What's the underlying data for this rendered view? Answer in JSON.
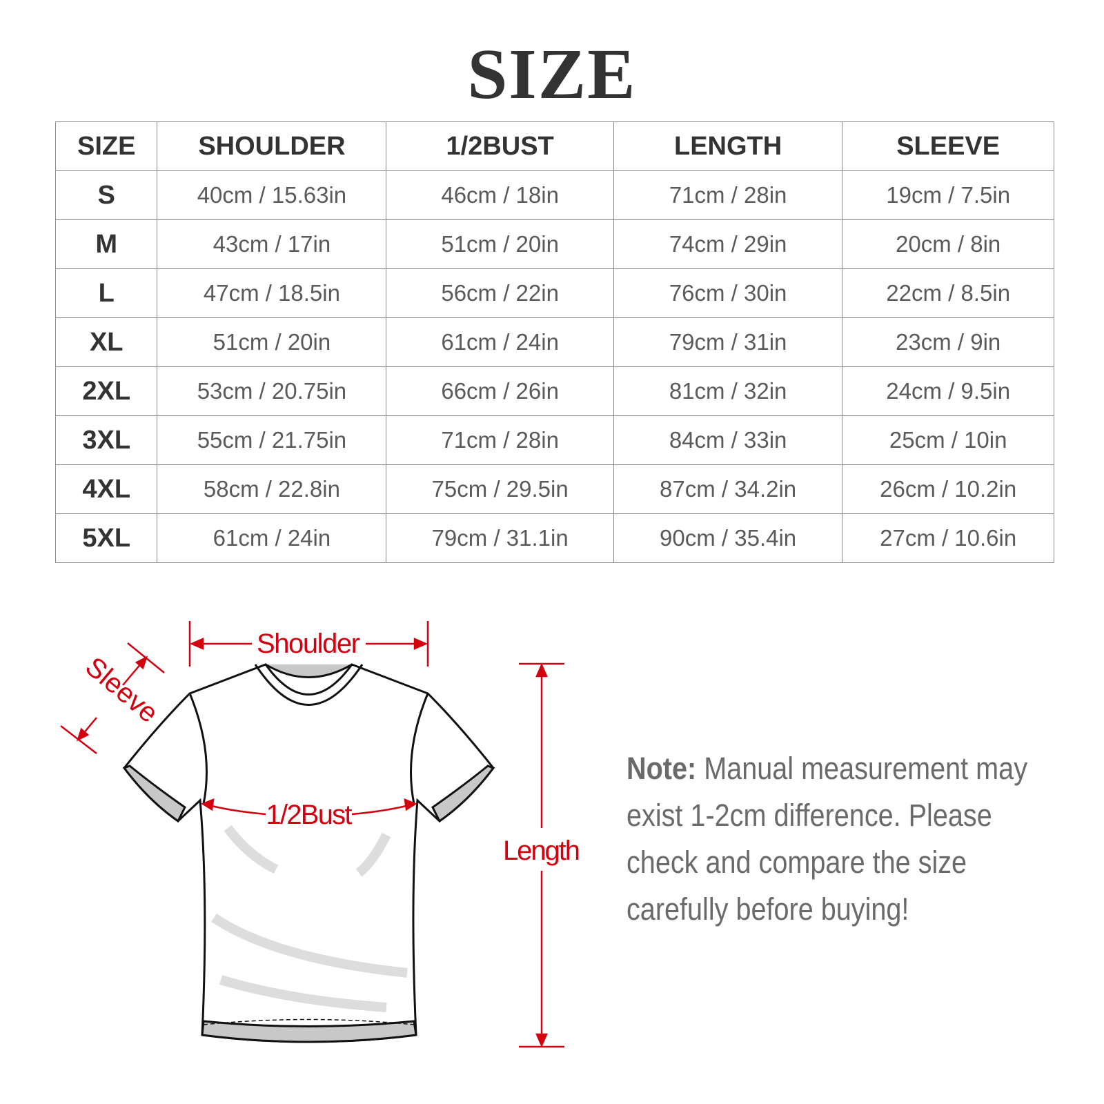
{
  "title": "SIZE",
  "table": {
    "headers": [
      "SIZE",
      "SHOULDER",
      "1/2BUST",
      "LENGTH",
      "SLEEVE"
    ],
    "rows": [
      [
        "S",
        "40cm / 15.63in",
        "46cm / 18in",
        "71cm / 28in",
        "19cm / 7.5in"
      ],
      [
        "M",
        "43cm / 17in",
        "51cm / 20in",
        "74cm / 29in",
        "20cm / 8in"
      ],
      [
        "L",
        "47cm / 18.5in",
        "56cm / 22in",
        "76cm / 30in",
        "22cm / 8.5in"
      ],
      [
        "XL",
        "51cm / 20in",
        "61cm / 24in",
        "79cm / 31in",
        "23cm / 9in"
      ],
      [
        "2XL",
        "53cm / 20.75in",
        "66cm / 26in",
        "81cm / 32in",
        "24cm / 9.5in"
      ],
      [
        "3XL",
        "55cm / 21.75in",
        "71cm / 28in",
        "84cm / 33in",
        "25cm / 10in"
      ],
      [
        "4XL",
        "58cm / 22.8in",
        "75cm / 29.5in",
        "87cm / 34.2in",
        "26cm / 10.2in"
      ],
      [
        "5XL",
        "61cm / 24in",
        "79cm / 31.1in",
        "90cm / 35.4in",
        "27cm / 10.6in"
      ]
    ]
  },
  "diagram": {
    "labels": {
      "shoulder": "Shoulder",
      "sleeve": "Sleeve",
      "bust": "1/2Bust",
      "length": "Length"
    },
    "accent_color": "#d40010",
    "icon": "t-shirt-outline"
  },
  "note": {
    "label": "Note:",
    "text": " Manual measurement may exist 1-2cm difference. Please check and compare the size carefully before buying!"
  }
}
